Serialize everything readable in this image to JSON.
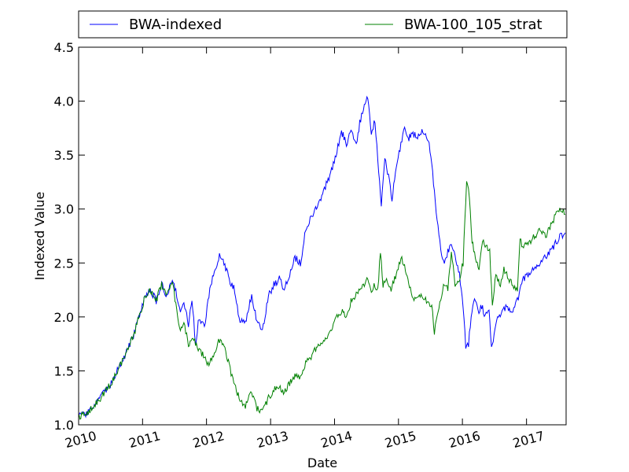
{
  "chart_data": {
    "type": "line",
    "xlabel": "Date",
    "ylabel": "Indexed Value",
    "xlim": [
      "2010-01-01",
      "2017-08-15"
    ],
    "ylim": [
      1.0,
      4.5
    ],
    "x_ticks": [
      "2010",
      "2011",
      "2012",
      "2013",
      "2014",
      "2015",
      "2016",
      "2017"
    ],
    "y_ticks": [
      "1.0",
      "1.5",
      "2.0",
      "2.5",
      "3.0",
      "3.5",
      "4.0",
      "4.5"
    ],
    "grid": false,
    "legend_position": "top",
    "series": [
      {
        "name": "BWA-indexed",
        "color": "#0000ff",
        "points": [
          [
            "2010-01-04",
            1.08
          ],
          [
            "2010-02-15",
            1.1
          ],
          [
            "2010-04-01",
            1.18
          ],
          [
            "2010-05-15",
            1.27
          ],
          [
            "2010-07-01",
            1.37
          ],
          [
            "2010-08-15",
            1.52
          ],
          [
            "2010-10-01",
            1.67
          ],
          [
            "2010-11-15",
            1.85
          ],
          [
            "2010-12-20",
            2.05
          ],
          [
            "2011-01-15",
            2.18
          ],
          [
            "2011-02-15",
            2.25
          ],
          [
            "2011-03-20",
            2.15
          ],
          [
            "2011-04-20",
            2.3
          ],
          [
            "2011-05-20",
            2.2
          ],
          [
            "2011-06-20",
            2.35
          ],
          [
            "2011-07-10",
            2.25
          ],
          [
            "2011-08-05",
            2.02
          ],
          [
            "2011-08-25",
            2.15
          ],
          [
            "2011-09-20",
            1.92
          ],
          [
            "2011-10-10",
            2.18
          ],
          [
            "2011-10-30",
            1.75
          ],
          [
            "2011-11-20",
            2.0
          ],
          [
            "2011-12-20",
            1.9
          ],
          [
            "2012-01-20",
            2.25
          ],
          [
            "2012-02-20",
            2.45
          ],
          [
            "2012-03-15",
            2.58
          ],
          [
            "2012-04-10",
            2.5
          ],
          [
            "2012-05-10",
            2.35
          ],
          [
            "2012-06-10",
            2.25
          ],
          [
            "2012-07-05",
            1.98
          ],
          [
            "2012-08-10",
            1.95
          ],
          [
            "2012-09-15",
            2.2
          ],
          [
            "2012-10-15",
            1.95
          ],
          [
            "2012-11-15",
            1.88
          ],
          [
            "2012-12-20",
            2.2
          ],
          [
            "2013-01-20",
            2.3
          ],
          [
            "2013-02-20",
            2.35
          ],
          [
            "2013-03-20",
            2.25
          ],
          [
            "2013-04-20",
            2.4
          ],
          [
            "2013-05-20",
            2.55
          ],
          [
            "2013-06-20",
            2.5
          ],
          [
            "2013-07-15",
            2.75
          ],
          [
            "2013-08-15",
            2.9
          ],
          [
            "2013-09-15",
            3.0
          ],
          [
            "2013-10-15",
            3.1
          ],
          [
            "2013-11-20",
            3.25
          ],
          [
            "2013-12-20",
            3.38
          ],
          [
            "2014-01-15",
            3.55
          ],
          [
            "2014-02-10",
            3.72
          ],
          [
            "2014-03-10",
            3.6
          ],
          [
            "2014-04-05",
            3.75
          ],
          [
            "2014-05-05",
            3.6
          ],
          [
            "2014-05-25",
            3.8
          ],
          [
            "2014-06-20",
            3.95
          ],
          [
            "2014-07-10",
            4.03
          ],
          [
            "2014-07-30",
            3.7
          ],
          [
            "2014-08-20",
            3.82
          ],
          [
            "2014-09-05",
            3.45
          ],
          [
            "2014-09-25",
            3.05
          ],
          [
            "2014-10-15",
            3.5
          ],
          [
            "2014-11-05",
            3.3
          ],
          [
            "2014-11-25",
            3.1
          ],
          [
            "2014-12-20",
            3.4
          ],
          [
            "2015-01-15",
            3.6
          ],
          [
            "2015-02-05",
            3.75
          ],
          [
            "2015-02-25",
            3.65
          ],
          [
            "2015-03-20",
            3.7
          ],
          [
            "2015-04-20",
            3.68
          ],
          [
            "2015-05-20",
            3.72
          ],
          [
            "2015-06-20",
            3.65
          ],
          [
            "2015-07-10",
            3.45
          ],
          [
            "2015-07-30",
            3.05
          ],
          [
            "2015-08-20",
            2.75
          ],
          [
            "2015-09-15",
            2.5
          ],
          [
            "2015-10-10",
            2.6
          ],
          [
            "2015-10-30",
            2.7
          ],
          [
            "2015-11-20",
            2.55
          ],
          [
            "2015-12-15",
            2.4
          ],
          [
            "2016-01-05",
            2.1
          ],
          [
            "2016-01-20",
            1.72
          ],
          [
            "2016-02-05",
            1.75
          ],
          [
            "2016-02-20",
            2.0
          ],
          [
            "2016-03-10",
            2.2
          ],
          [
            "2016-03-30",
            2.05
          ],
          [
            "2016-04-20",
            2.1
          ],
          [
            "2016-05-10",
            2.0
          ],
          [
            "2016-06-01",
            2.05
          ],
          [
            "2016-06-15",
            1.7
          ],
          [
            "2016-07-05",
            1.9
          ],
          [
            "2016-07-25",
            2.0
          ],
          [
            "2016-08-15",
            2.05
          ],
          [
            "2016-09-10",
            2.1
          ],
          [
            "2016-10-10",
            2.05
          ],
          [
            "2016-11-10",
            2.15
          ],
          [
            "2016-12-10",
            2.35
          ],
          [
            "2017-01-15",
            2.4
          ],
          [
            "2017-02-15",
            2.45
          ],
          [
            "2017-03-15",
            2.5
          ],
          [
            "2017-04-15",
            2.55
          ],
          [
            "2017-05-15",
            2.6
          ],
          [
            "2017-06-15",
            2.68
          ],
          [
            "2017-07-15",
            2.75
          ],
          [
            "2017-08-10",
            2.78
          ]
        ]
      },
      {
        "name": "BWA-100_105_strat",
        "color": "#008000",
        "points": [
          [
            "2010-01-04",
            1.08
          ],
          [
            "2010-02-15",
            1.1
          ],
          [
            "2010-04-01",
            1.18
          ],
          [
            "2010-05-15",
            1.27
          ],
          [
            "2010-07-01",
            1.37
          ],
          [
            "2010-08-15",
            1.52
          ],
          [
            "2010-10-01",
            1.67
          ],
          [
            "2010-11-15",
            1.85
          ],
          [
            "2010-12-20",
            2.05
          ],
          [
            "2011-01-15",
            2.18
          ],
          [
            "2011-02-15",
            2.25
          ],
          [
            "2011-03-20",
            2.15
          ],
          [
            "2011-04-20",
            2.3
          ],
          [
            "2011-05-20",
            2.2
          ],
          [
            "2011-06-20",
            2.35
          ],
          [
            "2011-07-10",
            2.1
          ],
          [
            "2011-08-05",
            1.85
          ],
          [
            "2011-08-25",
            1.95
          ],
          [
            "2011-09-20",
            1.75
          ],
          [
            "2011-10-20",
            1.78
          ],
          [
            "2011-11-20",
            1.7
          ],
          [
            "2011-12-20",
            1.62
          ],
          [
            "2012-01-15",
            1.55
          ],
          [
            "2012-02-10",
            1.65
          ],
          [
            "2012-03-10",
            1.78
          ],
          [
            "2012-04-10",
            1.72
          ],
          [
            "2012-05-10",
            1.55
          ],
          [
            "2012-06-05",
            1.38
          ],
          [
            "2012-07-05",
            1.25
          ],
          [
            "2012-08-10",
            1.18
          ],
          [
            "2012-09-15",
            1.3
          ],
          [
            "2012-10-15",
            1.15
          ],
          [
            "2012-11-15",
            1.12
          ],
          [
            "2012-12-20",
            1.25
          ],
          [
            "2013-01-20",
            1.32
          ],
          [
            "2013-02-20",
            1.35
          ],
          [
            "2013-03-20",
            1.3
          ],
          [
            "2013-04-20",
            1.38
          ],
          [
            "2013-05-20",
            1.45
          ],
          [
            "2013-06-20",
            1.45
          ],
          [
            "2013-07-15",
            1.55
          ],
          [
            "2013-08-15",
            1.62
          ],
          [
            "2013-09-15",
            1.7
          ],
          [
            "2013-10-15",
            1.75
          ],
          [
            "2013-11-20",
            1.82
          ],
          [
            "2013-12-20",
            1.9
          ],
          [
            "2014-01-15",
            2.0
          ],
          [
            "2014-02-10",
            2.05
          ],
          [
            "2014-03-10",
            2.0
          ],
          [
            "2014-04-05",
            2.15
          ],
          [
            "2014-05-05",
            2.2
          ],
          [
            "2014-05-25",
            2.25
          ],
          [
            "2014-06-20",
            2.3
          ],
          [
            "2014-07-10",
            2.38
          ],
          [
            "2014-07-30",
            2.25
          ],
          [
            "2014-08-20",
            2.3
          ],
          [
            "2014-09-05",
            2.25
          ],
          [
            "2014-09-20",
            2.6
          ],
          [
            "2014-10-05",
            2.3
          ],
          [
            "2014-10-30",
            2.35
          ],
          [
            "2014-11-20",
            2.25
          ],
          [
            "2014-12-20",
            2.4
          ],
          [
            "2015-01-20",
            2.55
          ],
          [
            "2015-02-10",
            2.45
          ],
          [
            "2015-03-10",
            2.25
          ],
          [
            "2015-04-10",
            2.15
          ],
          [
            "2015-05-10",
            2.2
          ],
          [
            "2015-06-10",
            2.15
          ],
          [
            "2015-07-10",
            2.1
          ],
          [
            "2015-07-25",
            1.85
          ],
          [
            "2015-08-15",
            2.05
          ],
          [
            "2015-09-15",
            2.3
          ],
          [
            "2015-10-10",
            2.25
          ],
          [
            "2015-10-30",
            2.6
          ],
          [
            "2015-11-20",
            2.3
          ],
          [
            "2015-12-15",
            2.35
          ],
          [
            "2016-01-05",
            2.5
          ],
          [
            "2016-01-25",
            3.28
          ],
          [
            "2016-02-10",
            3.1
          ],
          [
            "2016-02-25",
            2.7
          ],
          [
            "2016-03-15",
            2.55
          ],
          [
            "2016-04-05",
            2.45
          ],
          [
            "2016-04-25",
            2.7
          ],
          [
            "2016-05-20",
            2.65
          ],
          [
            "2016-06-05",
            2.6
          ],
          [
            "2016-06-20",
            2.1
          ],
          [
            "2016-07-10",
            2.4
          ],
          [
            "2016-08-05",
            2.3
          ],
          [
            "2016-08-25",
            2.45
          ],
          [
            "2016-09-20",
            2.35
          ],
          [
            "2016-10-15",
            2.3
          ],
          [
            "2016-11-10",
            2.25
          ],
          [
            "2016-11-25",
            2.7
          ],
          [
            "2016-12-20",
            2.65
          ],
          [
            "2017-01-20",
            2.7
          ],
          [
            "2017-02-20",
            2.75
          ],
          [
            "2017-03-20",
            2.8
          ],
          [
            "2017-04-20",
            2.75
          ],
          [
            "2017-05-20",
            2.85
          ],
          [
            "2017-06-20",
            2.95
          ],
          [
            "2017-07-15",
            3.0
          ],
          [
            "2017-08-10",
            2.95
          ]
        ]
      }
    ]
  }
}
